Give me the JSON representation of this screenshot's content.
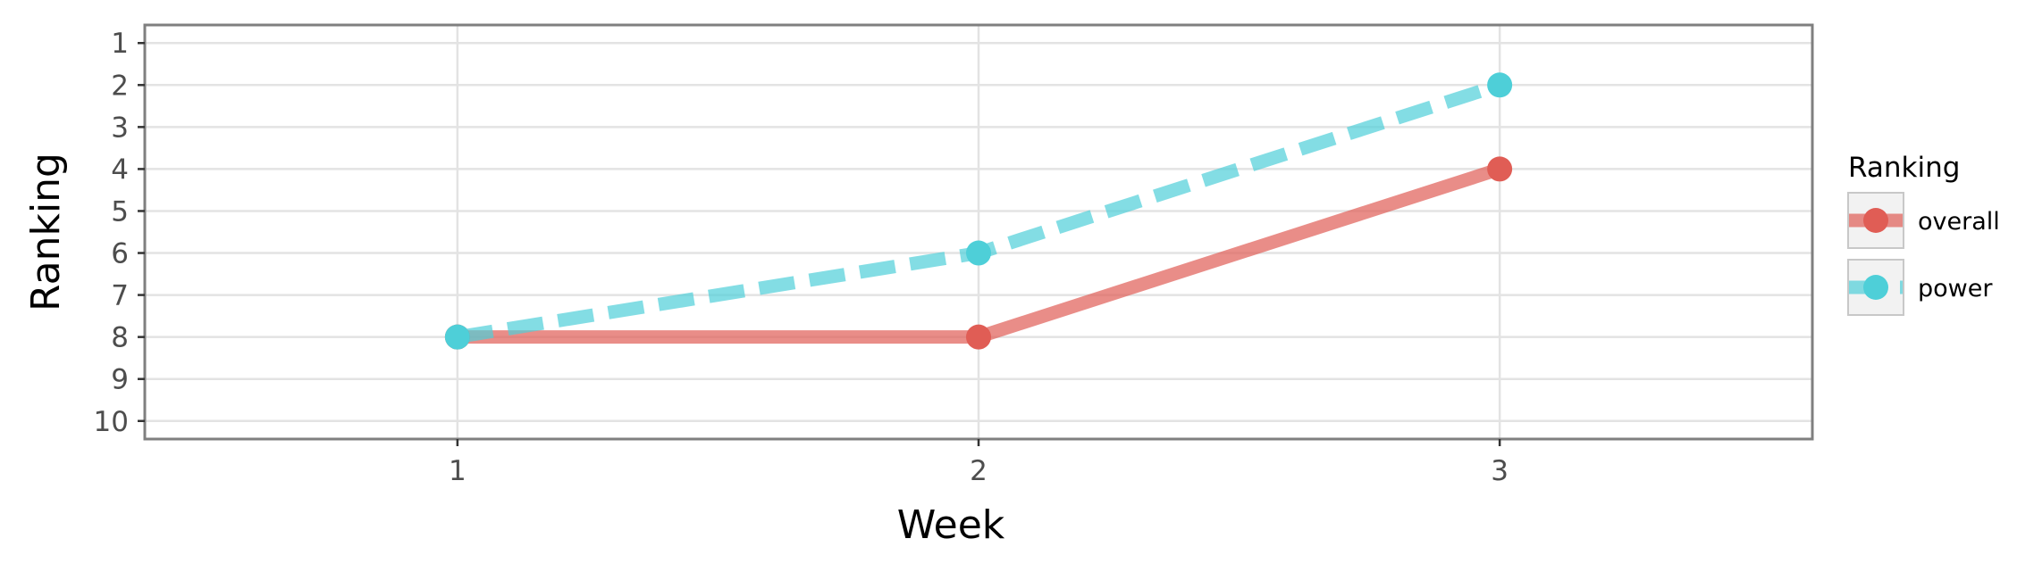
{
  "chart_data": {
    "type": "line",
    "title": "",
    "xlabel": "Week",
    "ylabel": "Ranking",
    "x": [
      1,
      2,
      3
    ],
    "x_tick_labels": [
      "1",
      "2",
      "3"
    ],
    "y_tick_labels": [
      "1",
      "2",
      "3",
      "4",
      "5",
      "6",
      "7",
      "8",
      "9",
      "10"
    ],
    "y_reversed": true,
    "xlim": [
      0.4,
      3.6
    ],
    "ylim": [
      10.43,
      0.57
    ],
    "grid": true,
    "legend": {
      "title": "Ranking",
      "position": "right"
    },
    "series": [
      {
        "name": "overall",
        "values": [
          8,
          8,
          4
        ],
        "color": "#e05d55",
        "line_style": "solid"
      },
      {
        "name": "power",
        "values": [
          8,
          6,
          2
        ],
        "color": "#4ecfd8",
        "line_style": "dashed"
      }
    ]
  }
}
